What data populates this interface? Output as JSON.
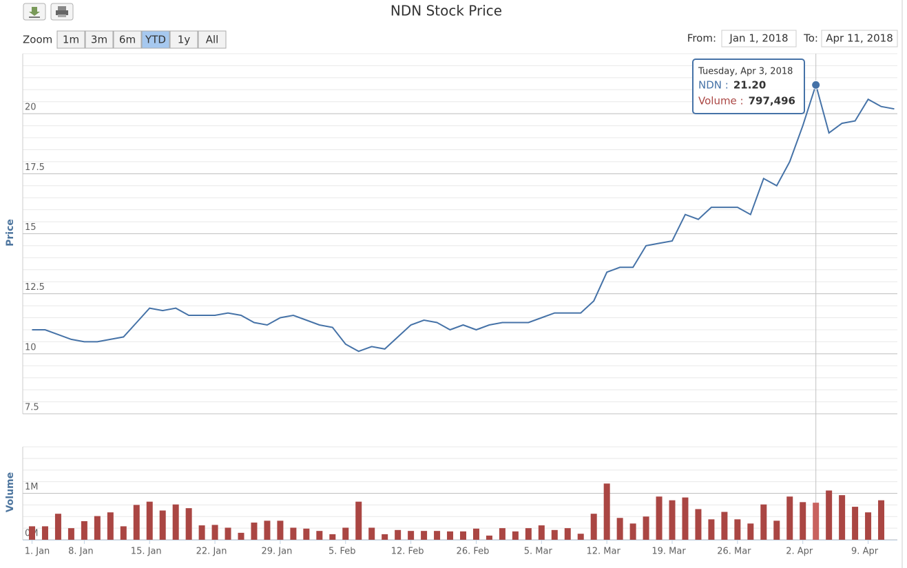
{
  "chart_data": {
    "type": "stock",
    "title": "NDN Stock Price",
    "categories": [
      "1. Jan",
      null,
      null,
      null,
      "8. Jan",
      null,
      null,
      null,
      null,
      "15. Jan",
      null,
      null,
      null,
      null,
      "22. Jan",
      null,
      null,
      null,
      null,
      "29. Jan",
      null,
      null,
      null,
      null,
      "5. Feb",
      null,
      null,
      null,
      null,
      "12. Feb",
      null,
      null,
      null,
      null,
      "26. Feb",
      null,
      null,
      null,
      null,
      "5. Mar",
      null,
      null,
      null,
      null,
      "12. Mar",
      null,
      null,
      null,
      null,
      "19. Mar",
      null,
      null,
      null,
      null,
      "26. Mar",
      null,
      null,
      null,
      null,
      "2. Apr",
      null,
      null,
      null,
      null,
      "9. Apr",
      null,
      null
    ],
    "series": [
      {
        "name": "NDN",
        "type": "line",
        "color": "#4572a7",
        "values": [
          11.0,
          11.0,
          10.8,
          10.6,
          10.5,
          10.5,
          10.6,
          10.7,
          11.3,
          11.9,
          11.8,
          11.9,
          11.6,
          11.6,
          11.6,
          11.7,
          11.6,
          11.3,
          11.2,
          11.5,
          11.6,
          11.4,
          11.2,
          11.1,
          10.4,
          10.1,
          10.3,
          10.2,
          10.7,
          11.2,
          11.4,
          11.3,
          11.0,
          11.2,
          11.0,
          11.2,
          11.3,
          11.3,
          11.3,
          11.5,
          11.7,
          11.7,
          11.7,
          12.2,
          13.4,
          13.6,
          13.6,
          14.5,
          14.6,
          14.7,
          15.8,
          15.6,
          16.1,
          16.1,
          16.1,
          15.8,
          17.3,
          17.0,
          18.0,
          19.5,
          21.2,
          19.2,
          19.6,
          19.7,
          20.6,
          20.3,
          20.2
        ]
      },
      {
        "name": "Volume",
        "type": "column",
        "axis": "y2",
        "color": "#aa4643",
        "values": [
          290000,
          290000,
          560000,
          250000,
          400000,
          510000,
          590000,
          290000,
          750000,
          820000,
          630000,
          760000,
          680000,
          310000,
          320000,
          260000,
          150000,
          370000,
          410000,
          410000,
          260000,
          240000,
          190000,
          120000,
          260000,
          820000,
          260000,
          120000,
          210000,
          190000,
          190000,
          190000,
          180000,
          180000,
          240000,
          90000,
          250000,
          180000,
          250000,
          310000,
          210000,
          250000,
          130000,
          560000,
          1210000,
          470000,
          350000,
          500000,
          930000,
          850000,
          910000,
          660000,
          440000,
          600000,
          440000,
          350000,
          760000,
          410000,
          930000,
          810000,
          797496,
          1060000,
          960000,
          710000,
          590000,
          850000,
          null
        ]
      }
    ],
    "y_label": "Price",
    "ylim": [
      7.5,
      22.5
    ],
    "yticks": [
      7.5,
      10,
      12.5,
      15,
      17.5,
      20
    ],
    "yminor": 0.5,
    "y2_label": "Volume",
    "y2lim": [
      0,
      2000000
    ],
    "y2ticks": [
      {
        "value": 0,
        "label": "0M"
      },
      {
        "value": 1000000,
        "label": "1M"
      }
    ],
    "y2minor": 250000,
    "grid": true,
    "tooltip": {
      "header": "Tuesday, Apr 3, 2018",
      "rows": [
        {
          "label": "NDN :",
          "value": "21.20"
        },
        {
          "label": "Volume :",
          "value": "797,496"
        }
      ]
    }
  },
  "range_selector": {
    "zoom_label": "Zoom",
    "buttons": [
      "1m",
      "3m",
      "6m",
      "YTD",
      "1y",
      "All"
    ],
    "selected_index": 3,
    "from_label": "From:",
    "from": "Jan 1, 2018",
    "to_label": "To:",
    "to": "Apr 11, 2018"
  }
}
